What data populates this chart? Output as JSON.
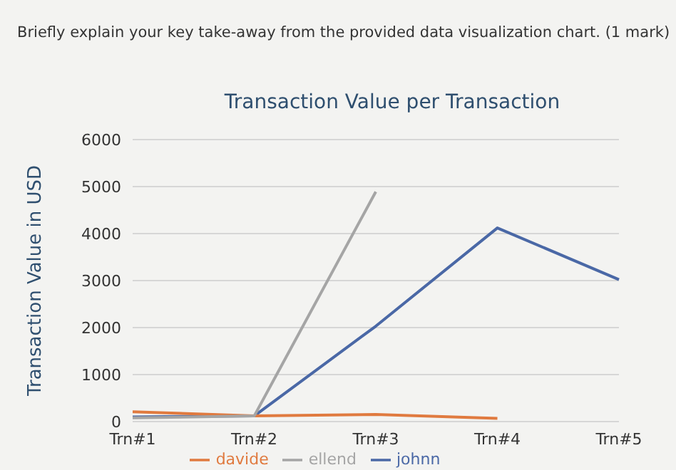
{
  "chart_data": {
    "type": "line",
    "title": "Transaction Value per Transaction",
    "ylabel": "Transaction Value in USD",
    "annotations": [
      "Briefly explain your key take-away from the provided data visualization chart. (1 mark)"
    ],
    "categories": [
      "Trn#1",
      "Trn#2",
      "Trn#3",
      "Trn#4",
      "Trn#5"
    ],
    "series": [
      {
        "name": "johnn",
        "color": "#4a68a6",
        "values": [
          100,
          120,
          2030,
          4120,
          3020
        ]
      },
      {
        "name": "davide",
        "color": "#e07a3f",
        "values": [
          210,
          120,
          150,
          70,
          null
        ]
      },
      {
        "name": "ellend",
        "color": "#a5a5a5",
        "values": [
          80,
          120,
          4890,
          null,
          null
        ]
      }
    ],
    "ylim": [
      0,
      6000
    ],
    "yticks": [
      0,
      1000,
      2000,
      3000,
      4000,
      5000,
      6000
    ],
    "grid": "y",
    "legend": "bottom",
    "marker": "none",
    "line_style": "solid"
  }
}
